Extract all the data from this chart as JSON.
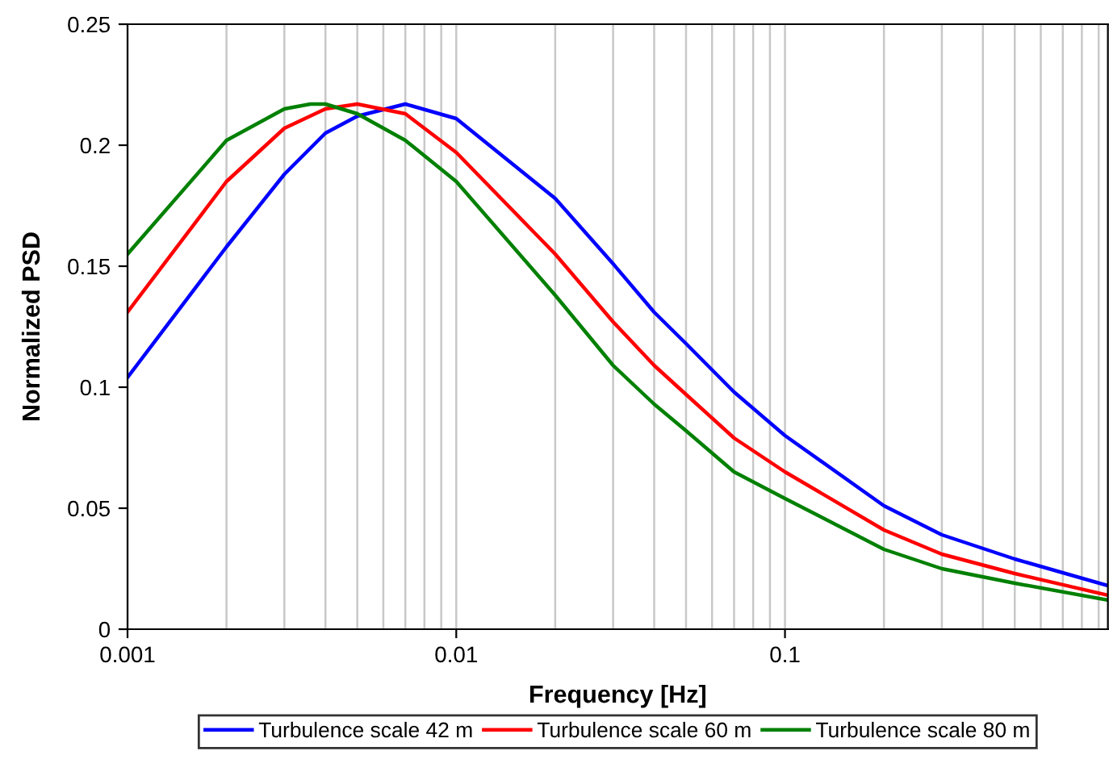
{
  "chart_data": {
    "type": "line",
    "xlabel": "Frequency [Hz]",
    "ylabel": "Normalized PSD",
    "log": "x",
    "grid": "x",
    "legend": "bottom",
    "marker": "none",
    "line_style": "solid",
    "xlim": [
      0.001,
      0.96
    ],
    "xticks": [
      0.001,
      0.01,
      0.1
    ],
    "ylim": [
      0,
      0.25
    ],
    "yticks": [
      0,
      0.05,
      0.1,
      0.15,
      0.2,
      0.25
    ],
    "series": [
      {
        "name": "Turbulence scale 42 m",
        "color": "#0000ff",
        "x": [
          0.001,
          0.002,
          0.003,
          0.004,
          0.005,
          0.007,
          0.01,
          0.02,
          0.03,
          0.04,
          0.05,
          0.07,
          0.1,
          0.2,
          0.3,
          0.5,
          0.96
        ],
        "values": [
          0.104,
          0.158,
          0.188,
          0.205,
          0.212,
          0.217,
          0.211,
          0.178,
          0.151,
          0.131,
          0.118,
          0.098,
          0.08,
          0.051,
          0.039,
          0.029,
          0.018
        ]
      },
      {
        "name": "Turbulence scale 60 m",
        "color": "#ff0000",
        "x": [
          0.001,
          0.002,
          0.003,
          0.004,
          0.005,
          0.007,
          0.01,
          0.02,
          0.03,
          0.04,
          0.05,
          0.07,
          0.1,
          0.2,
          0.3,
          0.5,
          0.96
        ],
        "values": [
          0.131,
          0.185,
          0.207,
          0.215,
          0.217,
          0.213,
          0.197,
          0.155,
          0.127,
          0.109,
          0.097,
          0.079,
          0.065,
          0.041,
          0.031,
          0.023,
          0.014
        ]
      },
      {
        "name": "Turbulence scale 80 m",
        "color": "#008000",
        "x": [
          0.001,
          0.002,
          0.003,
          0.0036,
          0.004,
          0.005,
          0.007,
          0.01,
          0.02,
          0.03,
          0.04,
          0.05,
          0.07,
          0.1,
          0.2,
          0.3,
          0.5,
          0.96
        ],
        "values": [
          0.155,
          0.202,
          0.215,
          0.217,
          0.217,
          0.213,
          0.202,
          0.185,
          0.138,
          0.109,
          0.093,
          0.082,
          0.065,
          0.054,
          0.033,
          0.025,
          0.019,
          0.012
        ]
      }
    ]
  }
}
